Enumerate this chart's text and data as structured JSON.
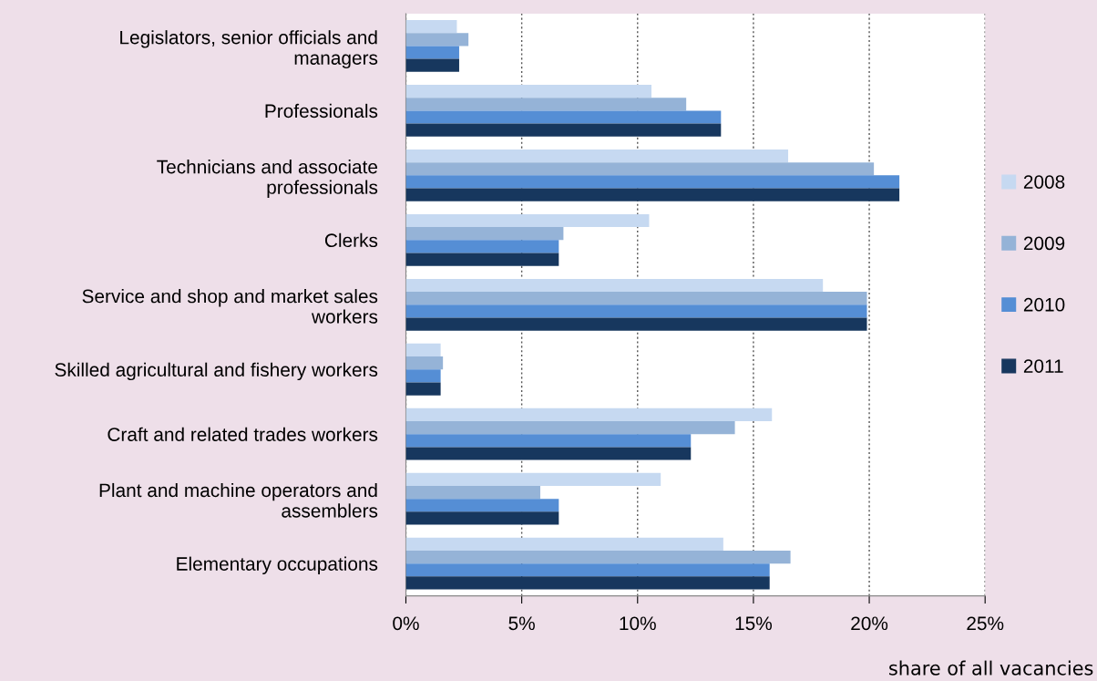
{
  "chart_data": {
    "type": "bar",
    "orientation": "horizontal",
    "xlabel": "share of all vacancies",
    "categories": [
      "Legislators, senior officials and\nmanagers",
      "Professionals",
      "Technicians and associate\nprofessionals",
      "Clerks",
      "Service and shop and market sales\nworkers",
      "Skilled agricultural and fishery workers",
      "Craft and related trades workers",
      "Plant and machine operators and\nassemblers",
      "Elementary occupations"
    ],
    "series": [
      {
        "name": "2008",
        "color": "#c6d9f1",
        "values": [
          2.2,
          10.6,
          16.5,
          10.5,
          18.0,
          1.5,
          15.8,
          11.0,
          13.7
        ]
      },
      {
        "name": "2009",
        "color": "#95b3d7",
        "values": [
          2.7,
          12.1,
          20.2,
          6.8,
          19.9,
          1.6,
          14.2,
          5.8,
          16.6
        ]
      },
      {
        "name": "2010",
        "color": "#558ed5",
        "values": [
          2.3,
          13.6,
          21.3,
          6.6,
          19.9,
          1.5,
          12.3,
          6.6,
          15.7
        ]
      },
      {
        "name": "2011",
        "color": "#17375e",
        "values": [
          2.3,
          13.6,
          21.3,
          6.6,
          19.9,
          1.5,
          12.3,
          6.6,
          15.7
        ]
      }
    ],
    "xlim": [
      0,
      25
    ],
    "xticks": [
      {
        "value": 0,
        "label": "0%"
      },
      {
        "value": 5,
        "label": "5%"
      },
      {
        "value": 10,
        "label": "10%"
      },
      {
        "value": 15,
        "label": "15%"
      },
      {
        "value": 20,
        "label": "20%"
      },
      {
        "value": 25,
        "label": "25%"
      }
    ],
    "grid": "x",
    "legend": "right"
  }
}
